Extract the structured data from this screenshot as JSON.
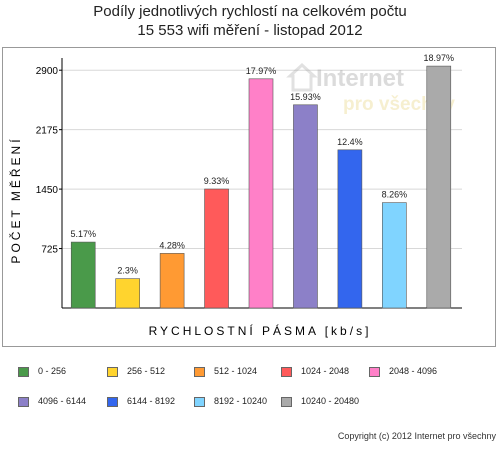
{
  "title": {
    "line1": "Podíly jednotlivých rychlostí na celkovém počtu",
    "line2": "15 553 wifi měření - listopad 2012"
  },
  "watermark": {
    "word1": "Internet",
    "word2": "pro všechny"
  },
  "copyright": "Copyright (c) 2012 Internet pro všechny",
  "chart_data": {
    "type": "bar",
    "xlabel": "RYCHLOSTNÍ PÁSMA [kb/s]",
    "ylabel": "POČET MĚŘENÍ",
    "ylim": [
      0,
      3000
    ],
    "yticks": [
      725,
      1450,
      2175,
      2900
    ],
    "grid": true,
    "categories": [
      "0 - 256",
      "256 - 512",
      "512 - 1024",
      "1024 - 2048",
      "2048 - 4096",
      "4096 - 6144",
      "6144 - 8192",
      "8192 - 10240",
      "10240 - 20480"
    ],
    "values": [
      804,
      358,
      666,
      1451,
      2795,
      2478,
      1929,
      1285,
      2950
    ],
    "data_labels": [
      "5.17%",
      "2.3%",
      "4.28%",
      "9.33%",
      "17.97%",
      "15.93%",
      "12.4%",
      "8.26%",
      "18.97%"
    ],
    "colors": [
      "#4a9a4a",
      "#ffd42e",
      "#ff9a33",
      "#ff5a5a",
      "#ff80c8",
      "#8c80c8",
      "#3366ee",
      "#80d4ff",
      "#aaaaaa"
    ],
    "legend_position": "bottom"
  }
}
